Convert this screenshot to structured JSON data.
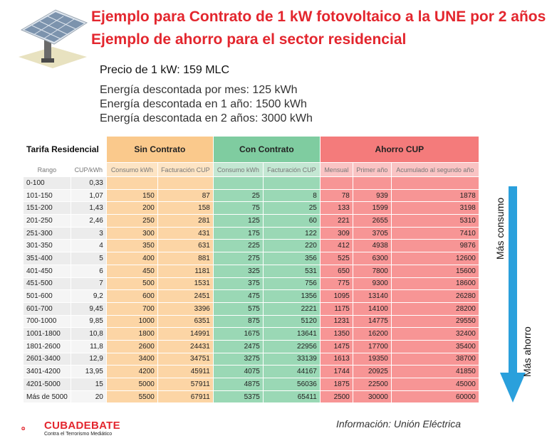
{
  "title_line1": "Ejemplo para Contrato de 1 kW fotovoltaico a la UNE por 2 años",
  "title_line2": "Ejemplo de ahorro para el sector residencial",
  "price": "Precio de 1 kW: 159 MLC",
  "energy": [
    "Energía descontada por mes: 125 kWh",
    "Energía descontada en 1 año: 1500 kWh",
    "Energía descontada en 2 años: 3000 kWh"
  ],
  "table": {
    "group_headers": {
      "tarifa": "Tarifa Residencial",
      "sin": "Sin Contrato",
      "con": "Con Contrato",
      "ahorro": "Ahorro CUP"
    },
    "sub_headers": [
      "Rango",
      "CUP/kWh",
      "Consumo kWh",
      "Facturación CUP",
      "Consumo kWh",
      "Facturación CUP",
      "Mensual",
      "Primer año",
      "Acumulado al segundo año"
    ],
    "rows": [
      [
        "0-100",
        "0,33",
        "",
        "",
        "",
        "",
        "",
        "",
        ""
      ],
      [
        "101-150",
        "1,07",
        "150",
        "87",
        "25",
        "8",
        "78",
        "939",
        "1878"
      ],
      [
        "151-200",
        "1,43",
        "200",
        "158",
        "75",
        "25",
        "133",
        "1599",
        "3198"
      ],
      [
        "201-250",
        "2,46",
        "250",
        "281",
        "125",
        "60",
        "221",
        "2655",
        "5310"
      ],
      [
        "251-300",
        "3",
        "300",
        "431",
        "175",
        "122",
        "309",
        "3705",
        "7410"
      ],
      [
        "301-350",
        "4",
        "350",
        "631",
        "225",
        "220",
        "412",
        "4938",
        "9876"
      ],
      [
        "351-400",
        "5",
        "400",
        "881",
        "275",
        "356",
        "525",
        "6300",
        "12600"
      ],
      [
        "401-450",
        "6",
        "450",
        "1181",
        "325",
        "531",
        "650",
        "7800",
        "15600"
      ],
      [
        "451-500",
        "7",
        "500",
        "1531",
        "375",
        "756",
        "775",
        "9300",
        "18600"
      ],
      [
        "501-600",
        "9,2",
        "600",
        "2451",
        "475",
        "1356",
        "1095",
        "13140",
        "26280"
      ],
      [
        "601-700",
        "9,45",
        "700",
        "3396",
        "575",
        "2221",
        "1175",
        "14100",
        "28200"
      ],
      [
        "700-1000",
        "9,85",
        "1000",
        "6351",
        "875",
        "5120",
        "1231",
        "14775",
        "29550"
      ],
      [
        "1001-1800",
        "10,8",
        "1800",
        "14991",
        "1675",
        "13641",
        "1350",
        "16200",
        "32400"
      ],
      [
        "1801-2600",
        "11,8",
        "2600",
        "24431",
        "2475",
        "22956",
        "1475",
        "17700",
        "35400"
      ],
      [
        "2601-3400",
        "12,9",
        "3400",
        "34751",
        "3275",
        "33139",
        "1613",
        "19350",
        "38700"
      ],
      [
        "3401-4200",
        "13,95",
        "4200",
        "45911",
        "4075",
        "44167",
        "1744",
        "20925",
        "41850"
      ],
      [
        "4201-5000",
        "15",
        "5000",
        "57911",
        "4875",
        "56036",
        "1875",
        "22500",
        "45000"
      ],
      [
        "Más de 5000",
        "20",
        "5500",
        "67911",
        "5375",
        "65411",
        "2500",
        "30000",
        "60000"
      ]
    ]
  },
  "arrow_labels": {
    "top": "Más consumo",
    "bottom": "Más ahorro"
  },
  "logo": {
    "name": "CUBADEBATE",
    "tagline": "Contra el Terrorismo Mediático"
  },
  "source": "Información: Unión Eléctrica",
  "colors": {
    "title": "#e3262e",
    "sin_contrato": "#fac98c",
    "con_contrato": "#7fcca0",
    "ahorro": "#f47b7b",
    "arrow": "#2aa0dc"
  }
}
